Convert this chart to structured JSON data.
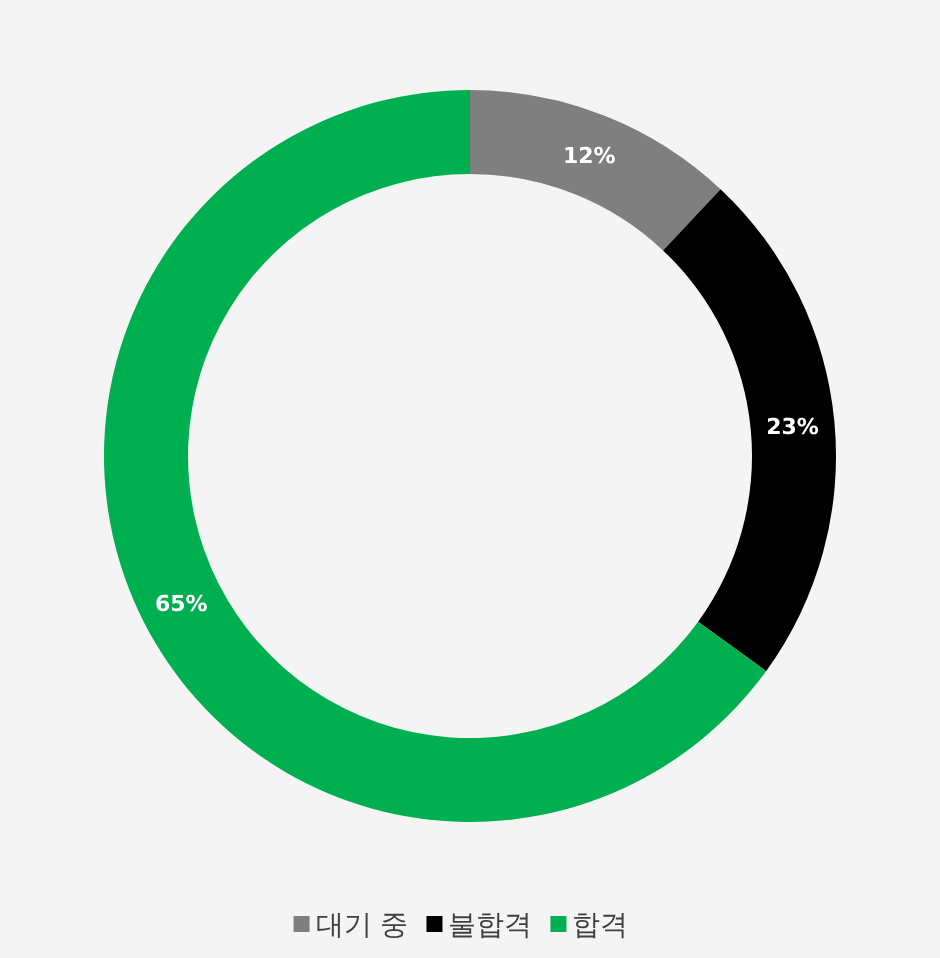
{
  "chart_data": {
    "type": "donut",
    "categories": [
      "대기 중",
      "불합격",
      "합격"
    ],
    "values": [
      12,
      23,
      65
    ],
    "colors": [
      "#7f7f7f",
      "#000000",
      "#00b050"
    ],
    "value_labels": [
      "12%",
      "23%",
      "65%"
    ],
    "legend": "bottom"
  }
}
